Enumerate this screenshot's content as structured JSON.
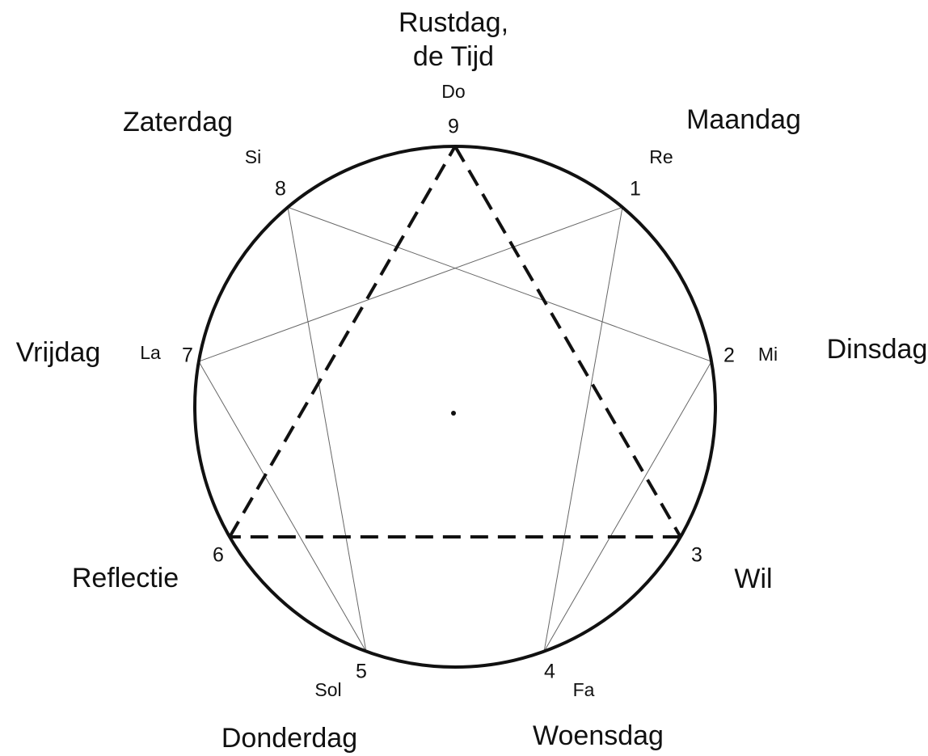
{
  "nodes": [
    {
      "number": "1",
      "note": "Re",
      "day": [
        "Maandag"
      ]
    },
    {
      "number": "2",
      "note": "Mi",
      "day": [
        "Dinsdag"
      ]
    },
    {
      "number": "3",
      "day": [
        "Wil"
      ]
    },
    {
      "number": "4",
      "note": "Fa",
      "day": [
        "Woensdag"
      ]
    },
    {
      "number": "5",
      "note": "Sol",
      "day": [
        "Donderdag"
      ]
    },
    {
      "number": "6",
      "day": [
        "Reflectie"
      ]
    },
    {
      "number": "7",
      "note": "La",
      "day": [
        "Vrijdag"
      ]
    },
    {
      "number": "8",
      "note": "Si",
      "day": [
        "Zaterdag"
      ]
    },
    {
      "number": "9",
      "note": "Do",
      "day": [
        "Rustdag,",
        "de Tijd"
      ]
    }
  ]
}
